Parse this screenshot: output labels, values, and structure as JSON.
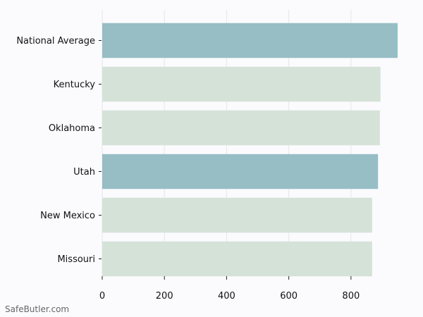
{
  "chart_data": {
    "type": "bar",
    "orientation": "horizontal",
    "categories": [
      "National Average",
      "Kentucky",
      "Oklahoma",
      "Utah",
      "New Mexico",
      "Missouri"
    ],
    "values": [
      950,
      895,
      893,
      887,
      868,
      868
    ],
    "highlight": [
      true,
      false,
      false,
      true,
      false,
      false
    ],
    "xlim": [
      0,
      950
    ],
    "xticks": [
      0,
      200,
      400,
      600,
      800
    ],
    "grid": true,
    "colors": {
      "highlight": "#97bdc5",
      "normal": "#d5e2d8",
      "grid": "#e6e6e6",
      "background": "#fbfbfe"
    }
  },
  "watermark": "SafeButler.com"
}
